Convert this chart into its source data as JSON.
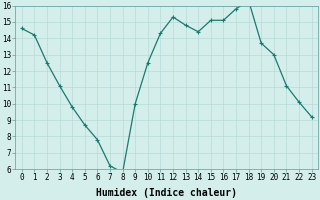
{
  "x": [
    0,
    1,
    2,
    3,
    4,
    5,
    6,
    7,
    8,
    9,
    10,
    11,
    12,
    13,
    14,
    15,
    16,
    17,
    18,
    19,
    20,
    21,
    22,
    23
  ],
  "y": [
    14.6,
    14.2,
    12.5,
    11.1,
    9.8,
    8.7,
    7.8,
    6.2,
    5.8,
    10.0,
    12.5,
    14.3,
    15.3,
    14.8,
    14.4,
    15.1,
    15.1,
    15.8,
    16.3,
    13.7,
    13.0,
    11.1,
    10.1,
    9.2
  ],
  "line_color": "#1a7a6e",
  "marker": "+",
  "marker_size": 3,
  "marker_linewidth": 0.8,
  "line_width": 0.9,
  "bg_color": "#d4eeeb",
  "grid_color": "#b8dbd8",
  "xlabel": "Humidex (Indice chaleur)",
  "ylim": [
    6,
    16
  ],
  "xlim_min": -0.5,
  "xlim_max": 23.5,
  "yticks": [
    6,
    7,
    8,
    9,
    10,
    11,
    12,
    13,
    14,
    15,
    16
  ],
  "xticks": [
    0,
    1,
    2,
    3,
    4,
    5,
    6,
    7,
    8,
    9,
    10,
    11,
    12,
    13,
    14,
    15,
    16,
    17,
    18,
    19,
    20,
    21,
    22,
    23
  ],
  "tick_fontsize": 5.5,
  "xlabel_fontsize": 7,
  "xlabel_fontweight": "bold"
}
